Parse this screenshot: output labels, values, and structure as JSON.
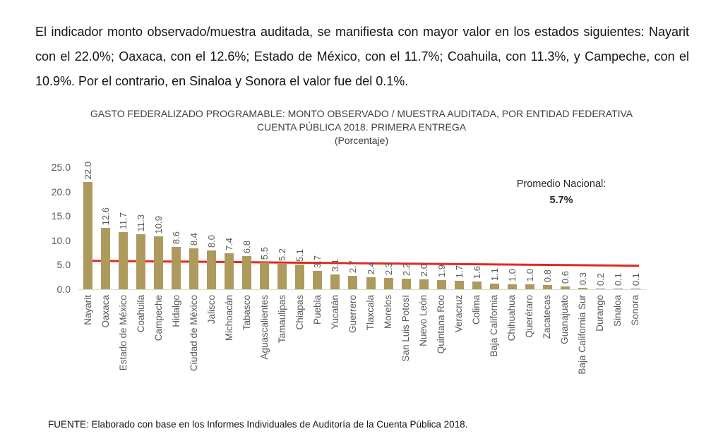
{
  "intro": {
    "text": "El indicador monto observado/muestra auditada, se manifiesta con mayor valor en los estados siguientes: Nayarit con el 22.0%; Oaxaca, con el 12.6%; Estado de México, con el 11.7%; Coahuila, con 11.3%, y Campeche, con el 10.9%. Por el contrario, en Sinaloa y Sonora el valor fue del 0.1%."
  },
  "chart_data": {
    "type": "bar",
    "title": "GASTO FEDERALIZADO PROGRAMABLE: MONTO OBSERVADO / MUESTRA AUDITADA, POR ENTIDAD FEDERATIVA",
    "subtitle": "CUENTA PÚBLICA 2018. PRIMERA ENTREGA",
    "unit_label": "(Porcentaje)",
    "categories": [
      "Nayarit",
      "Oaxaca",
      "Estado de México",
      "Coahuila",
      "Campeche",
      "Hidalgo",
      "Ciudad de México",
      "Jalisco",
      "Michoacán",
      "Tabasco",
      "Aguascalientes",
      "Tamaulipas",
      "Chiapas",
      "Puebla",
      "Yucatán",
      "Guerrero",
      "Tlaxcala",
      "Morelos",
      "San Luis Potosí",
      "Nuevo León",
      "Quintana Roo",
      "Veracruz",
      "Colima",
      "Baja California",
      "Chihuahua",
      "Querétaro",
      "Zacatecas",
      "Guanajuato",
      "Baja California Sur",
      "Durango",
      "Sinaloa",
      "Sonora"
    ],
    "values": [
      22.0,
      12.6,
      11.7,
      11.3,
      10.9,
      8.6,
      8.4,
      8.0,
      7.4,
      6.8,
      5.5,
      5.2,
      5.1,
      3.7,
      3.1,
      2.7,
      2.4,
      2.3,
      2.2,
      2.0,
      1.9,
      1.7,
      1.6,
      1.1,
      1.0,
      1.0,
      0.8,
      0.6,
      0.3,
      0.2,
      0.1,
      0.1
    ],
    "ylim": [
      0,
      25
    ],
    "yticks": [
      0.0,
      5.0,
      10.0,
      15.0,
      20.0,
      25.0
    ],
    "grid": false,
    "legend": "none",
    "bar_color": "#AF9A5D",
    "axis_text_color": "#595959",
    "average_line": {
      "value": 5.7,
      "color": "#DF2B1E",
      "label": "Promedio Nacional:",
      "value_label": "5.7%"
    }
  },
  "footer": {
    "source": "FUENTE: Elaborado con base en los Informes Individuales de Auditoría de la Cuenta Pública 2018."
  }
}
